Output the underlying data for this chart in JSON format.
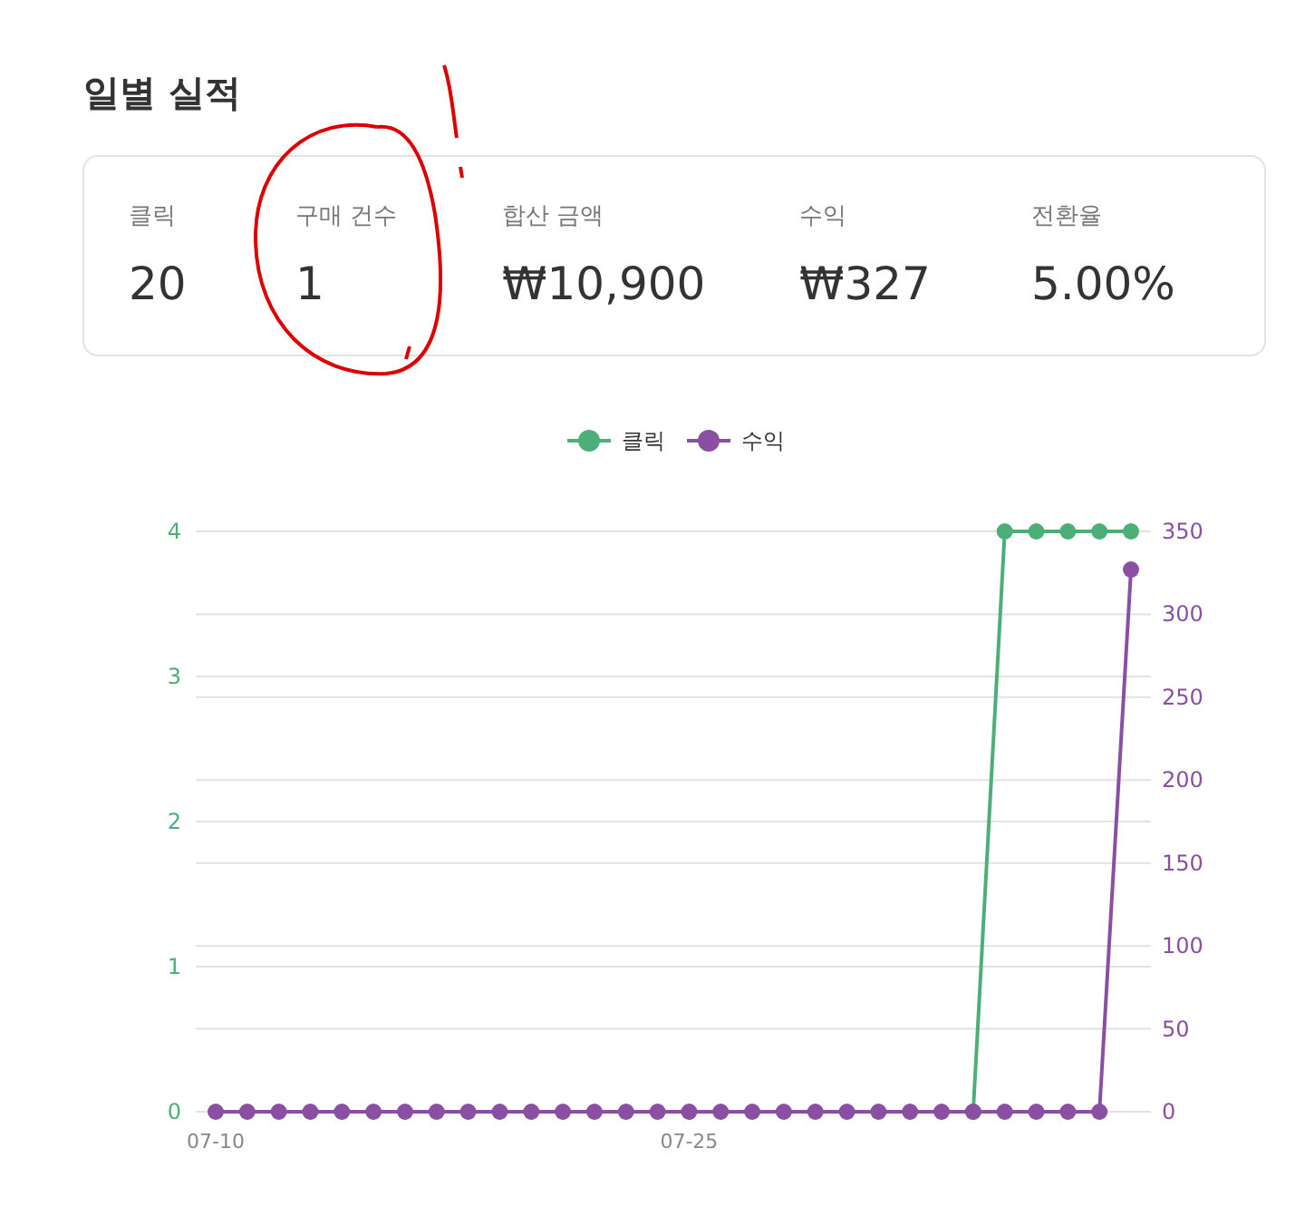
{
  "chart_data": [
    {
      "type": "other",
      "title": "일별 실적",
      "categories": [
        "클릭",
        "구매 건수",
        "합산 금액",
        "수익",
        "전환율"
      ],
      "value_labels": [
        "20",
        "1",
        "₩10,900",
        "₩327",
        "5.00%"
      ]
    },
    {
      "type": "line",
      "categories": [
        "07-10",
        null,
        null,
        null,
        null,
        null,
        null,
        null,
        null,
        null,
        null,
        null,
        null,
        null,
        null,
        "07-25",
        null,
        null,
        null,
        null,
        null,
        null,
        null,
        null,
        null,
        null,
        null,
        null,
        null,
        null
      ],
      "series": [
        {
          "name": "클릭",
          "color": "#4caf78",
          "values": [
            null,
            null,
            null,
            null,
            null,
            null,
            null,
            null,
            null,
            null,
            null,
            null,
            null,
            null,
            null,
            null,
            null,
            null,
            null,
            null,
            null,
            null,
            null,
            null,
            0,
            4,
            4,
            4,
            4,
            4
          ]
        },
        {
          "name": "수익",
          "color": "#8a4fa3",
          "axis": "y2",
          "values": [
            0,
            0,
            0,
            0,
            0,
            0,
            0,
            0,
            0,
            0,
            0,
            0,
            0,
            0,
            0,
            0,
            0,
            0,
            0,
            0,
            0,
            0,
            0,
            0,
            0,
            0,
            0,
            0,
            0,
            327
          ]
        }
      ],
      "ylim": [
        0,
        4
      ],
      "yticks": [
        0,
        1,
        2,
        3,
        4
      ],
      "y2lim": [
        0,
        350
      ],
      "y2ticks": [
        0,
        50,
        100,
        150,
        200,
        250,
        300,
        350
      ],
      "grid": true,
      "legend": "top",
      "marker": "circle",
      "line_style": "solid"
    }
  ]
}
